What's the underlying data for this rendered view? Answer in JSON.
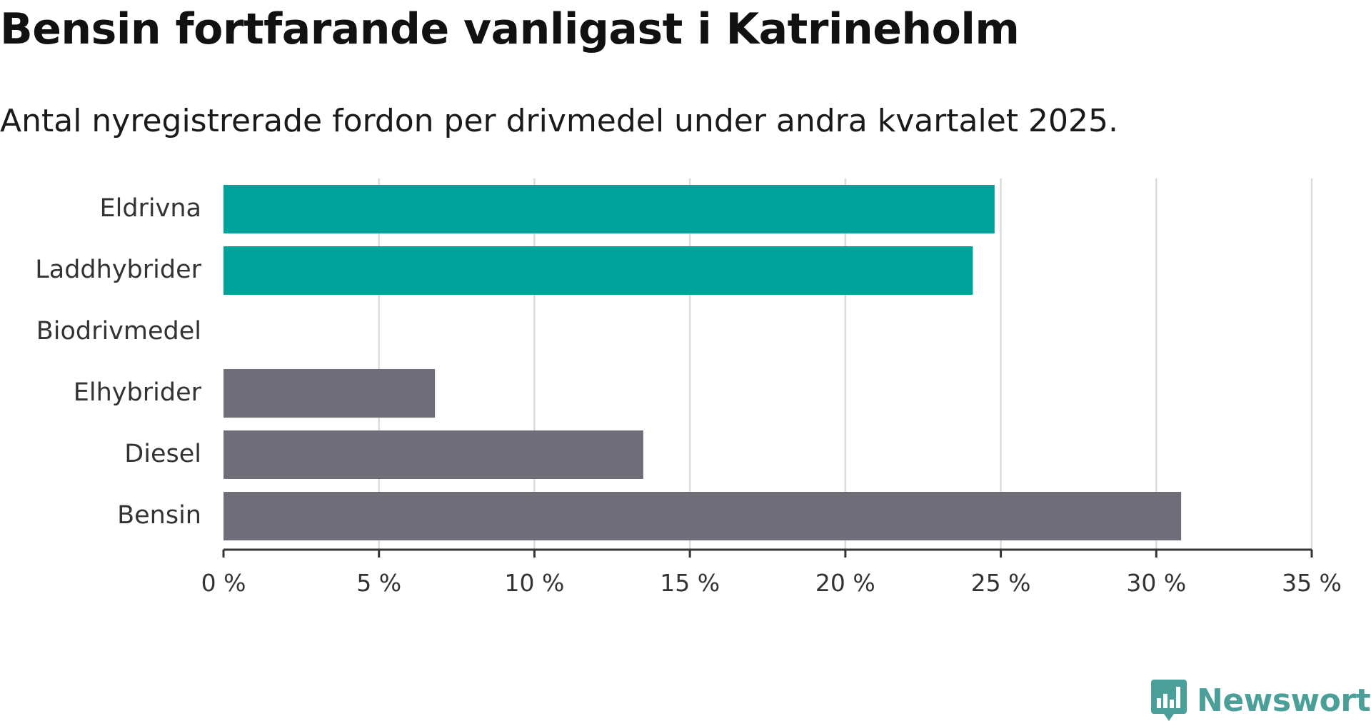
{
  "chart_data": {
    "type": "bar",
    "orientation": "horizontal",
    "title": "Bensin fortfarande vanligast i Katrineholm",
    "subtitle": "Antal nyregistrerade fordon per drivmedel under andra kvartalet 2025.",
    "categories": [
      "Eldrivna",
      "Laddhybrider",
      "Biodrivmedel",
      "Elhybrider",
      "Diesel",
      "Bensin"
    ],
    "values": [
      24.8,
      24.1,
      0,
      6.8,
      13.5,
      30.8
    ],
    "colors": [
      "#00a39a",
      "#00a39a",
      "#00a39a",
      "#6f6e78",
      "#6f6e78",
      "#6f6e78"
    ],
    "xlim": [
      0,
      35
    ],
    "xticks": [
      0,
      5,
      10,
      15,
      20,
      25,
      30,
      35
    ],
    "xtick_labels": [
      "0 %",
      "5 %",
      "10 %",
      "15 %",
      "20 %",
      "25 %",
      "30 %",
      "35 %"
    ],
    "xlabel": "",
    "ylabel": "",
    "grid": "vertical"
  },
  "branding": {
    "logo_text": "Newsworthy",
    "logo_icon": "bar-chart-speech-bubble-icon",
    "color": "#4a9f98"
  }
}
